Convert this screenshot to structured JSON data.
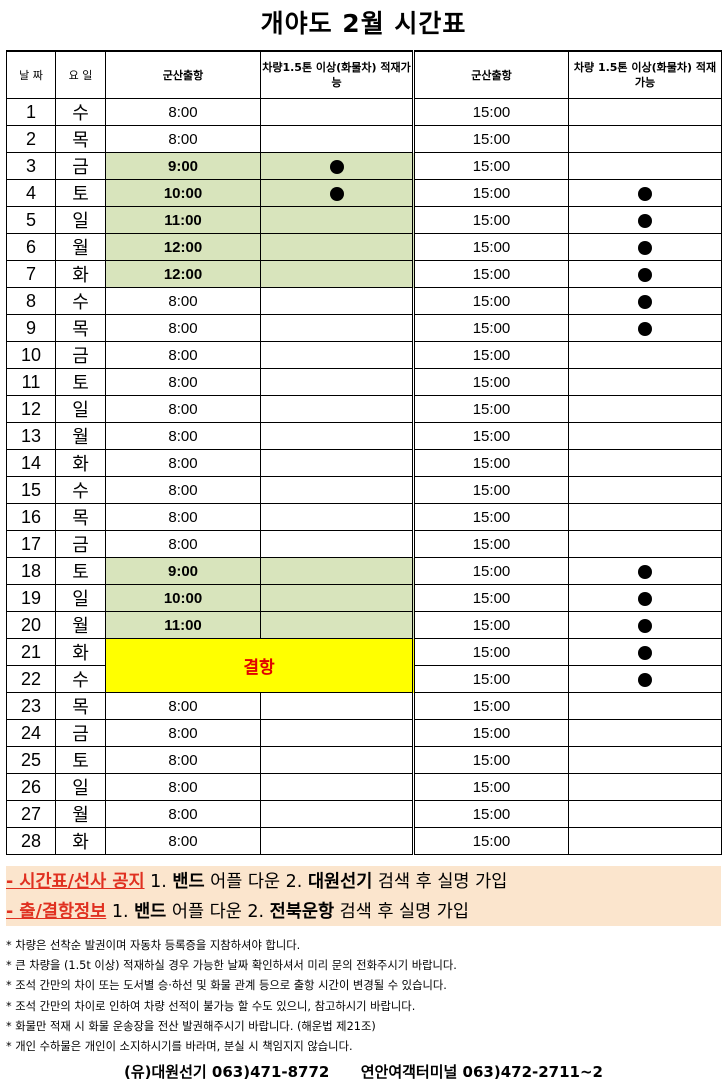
{
  "title": "개야도 2월 시간표",
  "headers": {
    "date": "날 짜",
    "day": "요 일",
    "dep1": "군산출항",
    "cargo1": "차량1.5톤 이상(화물차) 적재가능",
    "dep2": "군산출항",
    "cargo2": "차량 1.5톤 이상(화물차) 적재가능"
  },
  "colors": {
    "highlight_green": "#d8e4bc",
    "cancel_yellow": "#ffff00",
    "cancel_text": "#e00000",
    "notice_bg": "#fbe5cd",
    "notice_red": "#e03020"
  },
  "cancel_label": "결항",
  "rows": [
    {
      "date": "1",
      "day": "수",
      "dep1": "8:00",
      "cargo1": false,
      "dep2": "15:00",
      "cargo2": false
    },
    {
      "date": "2",
      "day": "목",
      "dep1": "8:00",
      "cargo1": false,
      "dep2": "15:00",
      "cargo2": false
    },
    {
      "date": "3",
      "day": "금",
      "dep1": "9:00",
      "hl": true,
      "cargo1": true,
      "dep2": "15:00",
      "cargo2": false
    },
    {
      "date": "4",
      "day": "토",
      "dep1": "10:00",
      "hl": true,
      "cargo1": true,
      "dep2": "15:00",
      "cargo2": true
    },
    {
      "date": "5",
      "day": "일",
      "dep1": "11:00",
      "hl": true,
      "cargo1": false,
      "dep2": "15:00",
      "cargo2": true
    },
    {
      "date": "6",
      "day": "월",
      "dep1": "12:00",
      "hl": true,
      "cargo1": false,
      "dep2": "15:00",
      "cargo2": true
    },
    {
      "date": "7",
      "day": "화",
      "dep1": "12:00",
      "hl": true,
      "cargo1": false,
      "dep2": "15:00",
      "cargo2": true
    },
    {
      "date": "8",
      "day": "수",
      "dep1": "8:00",
      "cargo1": false,
      "dep2": "15:00",
      "cargo2": true
    },
    {
      "date": "9",
      "day": "목",
      "dep1": "8:00",
      "cargo1": false,
      "dep2": "15:00",
      "cargo2": true
    },
    {
      "date": "10",
      "day": "금",
      "dep1": "8:00",
      "cargo1": false,
      "dep2": "15:00",
      "cargo2": false
    },
    {
      "date": "11",
      "day": "토",
      "dep1": "8:00",
      "cargo1": false,
      "dep2": "15:00",
      "cargo2": false
    },
    {
      "date": "12",
      "day": "일",
      "dep1": "8:00",
      "cargo1": false,
      "dep2": "15:00",
      "cargo2": false
    },
    {
      "date": "13",
      "day": "월",
      "dep1": "8:00",
      "cargo1": false,
      "dep2": "15:00",
      "cargo2": false
    },
    {
      "date": "14",
      "day": "화",
      "dep1": "8:00",
      "cargo1": false,
      "dep2": "15:00",
      "cargo2": false
    },
    {
      "date": "15",
      "day": "수",
      "dep1": "8:00",
      "cargo1": false,
      "dep2": "15:00",
      "cargo2": false
    },
    {
      "date": "16",
      "day": "목",
      "dep1": "8:00",
      "cargo1": false,
      "dep2": "15:00",
      "cargo2": false
    },
    {
      "date": "17",
      "day": "금",
      "dep1": "8:00",
      "cargo1": false,
      "dep2": "15:00",
      "cargo2": false
    },
    {
      "date": "18",
      "day": "토",
      "dep1": "9:00",
      "hl": true,
      "cargo1": false,
      "dep2": "15:00",
      "cargo2": true
    },
    {
      "date": "19",
      "day": "일",
      "dep1": "10:00",
      "hl": true,
      "cargo1": false,
      "dep2": "15:00",
      "cargo2": true
    },
    {
      "date": "20",
      "day": "월",
      "dep1": "11:00",
      "hl": true,
      "cargo1": false,
      "dep2": "15:00",
      "cargo2": true
    },
    {
      "date": "21",
      "day": "화",
      "cancel": "start",
      "dep2": "15:00",
      "cargo2": true
    },
    {
      "date": "22",
      "day": "수",
      "cancel": "cont",
      "dep2": "15:00",
      "cargo2": true
    },
    {
      "date": "23",
      "day": "목",
      "dep1": "8:00",
      "cargo1": false,
      "dep2": "15:00",
      "cargo2": false
    },
    {
      "date": "24",
      "day": "금",
      "dep1": "8:00",
      "cargo1": false,
      "dep2": "15:00",
      "cargo2": false
    },
    {
      "date": "25",
      "day": "토",
      "dep1": "8:00",
      "cargo1": false,
      "dep2": "15:00",
      "cargo2": false
    },
    {
      "date": "26",
      "day": "일",
      "dep1": "8:00",
      "cargo1": false,
      "dep2": "15:00",
      "cargo2": false
    },
    {
      "date": "27",
      "day": "월",
      "dep1": "8:00",
      "cargo1": false,
      "dep2": "15:00",
      "cargo2": false
    },
    {
      "date": "28",
      "day": "화",
      "dep1": "8:00",
      "cargo1": false,
      "dep2": "15:00",
      "cargo2": false
    }
  ],
  "notice": [
    {
      "label": "- 시간표/선사 공지",
      "p1": " 1. ",
      "b1": "밴드",
      "p2": " 어플 다운 2. ",
      "b2": "대원선기",
      "p3": " 검색 후 실명 가입"
    },
    {
      "label": "- 출/결항정보",
      "p1": " 1. ",
      "b1": "밴드",
      "p2": " 어플 다운 2. ",
      "b2": "전북운항",
      "p3": " 검색 후 실명 가입"
    }
  ],
  "notes": [
    "* 차량은 선착순 발권이며 자동차 등록증을 지참하셔야 합니다.",
    "* 큰 차량을 (1.5t 이상) 적재하실 경우 가능한 날짜 확인하셔서 미리 문의 전화주시기 바랍니다.",
    "* 조석 간만의 차이 또는 도서별 승·하선 및 화물 관계 등으로 출항 시간이 변경될 수 있습니다.",
    "* 조석 간만의 차이로 인하여 차량 선적이 불가능 할 수도 있으니, 참고하시기 바랍니다.",
    "* 화물만 적재 시 화물 운송장을 전산 발권해주시기 바랍니다. (해운법 제21조)",
    "* 개인 수하물은 개인이 소지하시기를 바라며, 분실 시 책임지지 않습니다."
  ],
  "footer": {
    "company": "(유)대원선기 063)471-8772",
    "terminal": "연안여객터미널 063)472-2711~2"
  }
}
